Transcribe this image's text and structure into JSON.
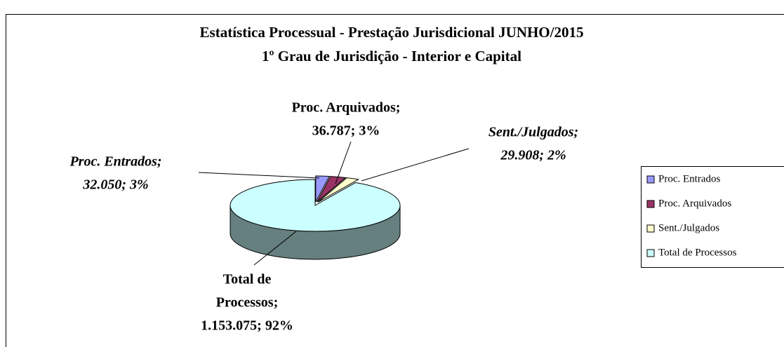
{
  "chart_data": {
    "type": "pie3d",
    "title": "Estatística Processual - Prestação Jurisdicional JUNHO/2015",
    "subtitle": "1º Grau de Jurisdição - Interior e Capital",
    "categories": [
      "Proc. Entrados",
      "Proc. Arquivados",
      "Sent./Julgados",
      "Total de Processos"
    ],
    "values": [
      32050,
      36787,
      29908,
      1153075
    ],
    "value_labels": [
      [
        "Proc. Entrados;",
        "32.050; 3%"
      ],
      [
        "Proc. Arquivados;",
        "36.787; 3%"
      ],
      [
        "Sent./Julgados;",
        "29.908; 2%"
      ],
      [
        "Total de",
        "Processos;",
        "1.153.075; 92%"
      ]
    ],
    "colors": [
      "#9999ff",
      "#993366",
      "#ffffcc",
      "#ccffff"
    ],
    "legend": "right"
  }
}
